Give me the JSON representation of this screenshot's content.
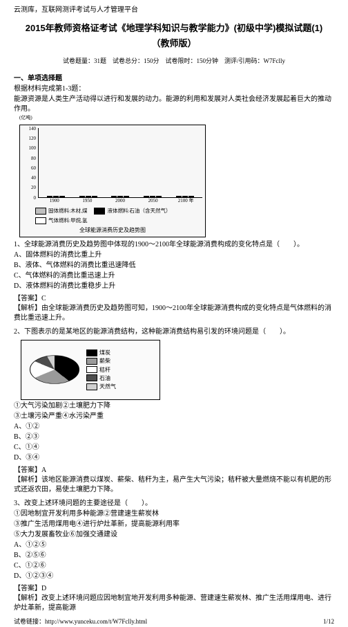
{
  "header": "云测库，互联网测评考试与人才管理平台",
  "title": "2015年教师资格证考试《地理学科知识与教学能力》(初级中学)模拟试题(1)",
  "subtitle": "（教师版）",
  "meta": {
    "count_label": "试卷题量：",
    "count_value": "31题",
    "score_label": "试卷总分：",
    "score_value": "150分",
    "time_label": "试卷限时：",
    "time_value": "150分钟",
    "code_label": "测评/引用码：",
    "code_value": "W7Fclly"
  },
  "section1": {
    "head": "一、单项选择题",
    "intro1": "根据材料完成第1-3题：",
    "intro2": "能源资源是人类生产活动得以进行和发展的动力。能源的利用和发展对人类社会经济发展起着巨大的推动作用。",
    "unit": "(亿吨)"
  },
  "chart1": {
    "y_ticks": [
      "140",
      "120",
      "100",
      "80",
      "60",
      "40",
      "20",
      "0"
    ],
    "x_ticks": [
      "1900",
      "1950",
      "2000",
      "2050",
      "2100 年"
    ],
    "colors": {
      "solid": "#bfbfbf",
      "liquid": "#000000",
      "gas": "#ffffff"
    },
    "groups": [
      {
        "solid": 18,
        "liquid": 2,
        "gas": 1
      },
      {
        "solid": 35,
        "liquid": 35,
        "gas": 20
      },
      {
        "solid": 45,
        "liquid": 70,
        "gas": 60
      },
      {
        "solid": 30,
        "liquid": 45,
        "gas": 95
      },
      {
        "solid": 18,
        "liquid": 20,
        "gas": 78
      }
    ],
    "legend": {
      "a": "固体燃料:木材,煤",
      "b": "液体燃料:石油（含天然气）",
      "c": "气体燃料:甲烷,氢"
    },
    "caption": "全球能源消费历史及趋势图"
  },
  "q1": {
    "stem": "1、全球能源消费历史及趋势图中体现的1900～2100年全球能源消费构成的变化特点是（　　）。",
    "a": "A、固体燃料的消费比重上升",
    "b": "B、液体、气体燃料的消费比重迅速降低",
    "c": "C、气体燃料的消费比重迅速上升",
    "d": "D、液体燃料的消费比重稳步上升",
    "ans_label": "【答案】C",
    "exp": "【解析】由全球能源消费历史及趋势图可知，1900～2100年全球能源消费构成的变化特点是气体燃料的消费比重迅速上升。"
  },
  "q2": {
    "stem": "2、下图表示的是某地区的能源消费结构，这种能源消费结构易引发的环境问题是（　　）。",
    "pie": {
      "slices": [
        {
          "label": "煤炭",
          "value": 40,
          "color": "#000000"
        },
        {
          "label": "薪柴",
          "value": 25,
          "color": "#9a9a9a"
        },
        {
          "label": "秸秆",
          "value": 20,
          "color": "#ffffff"
        },
        {
          "label": "石油",
          "value": 10,
          "color": "#4d4d4d"
        },
        {
          "label": "天然气",
          "value": 5,
          "color": "#d0d0d0"
        }
      ]
    },
    "notes": "①大气污染加剧②土壤肥力下降",
    "notes2": "③土壤污染严重④水污染严重",
    "a": "A、①②",
    "b": "B、②③",
    "c": "C、①④",
    "d": "D、③④",
    "ans_label": "【答案】A",
    "exp": "【解析】该地区能源消费以煤炭、薪柴、秸秆为主，易产生大气污染；秸秆被大量燃烧不能以有机肥的形式还返农田，易使土壤肥力下降。"
  },
  "q3": {
    "stem": "3、改变上述环境问题的主要途径是（　　）。",
    "l1": "①因地制宜开发利用多种能源②营建速生薪炭林",
    "l2": "③推广生活用煤用电④进行炉灶革新，提高能源利用率",
    "l3": "⑤大力发展畜牧业⑥加强交通建设",
    "a": "A、①②⑤",
    "b": "B、②⑤⑥",
    "c": "C、①②⑥",
    "d": "D、①②③④",
    "ans_label": "【答案】D",
    "exp": "【解析】改变上述环境问题应因地制宜地开发利用多种能源、营建速生薪炭林、推广生活用煤用电、进行炉灶革新，提高能源"
  },
  "footer": {
    "left_label": "试卷链接：",
    "left_url": "http://www.yunceku.com/t/W7Fclly.html",
    "right": "1/12"
  }
}
